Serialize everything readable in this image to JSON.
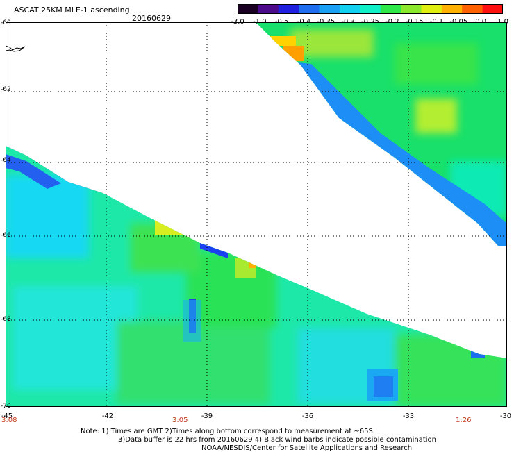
{
  "header": {
    "title": "ASCAT 25KM MLE-1 ascending",
    "date": "20160629"
  },
  "colorbar": {
    "labels": [
      "-3.0",
      "-1.0",
      "-0.5",
      "-0.4",
      "-0.35",
      "-0.3",
      "-0.25",
      "-0.2",
      "-0.15",
      "-0.1",
      "-0.05",
      "0.0",
      "1.0"
    ],
    "colors": [
      "#1a0022",
      "#4b0b8a",
      "#1f1fe0",
      "#1f6ef0",
      "#1aa0f5",
      "#12d0f0",
      "#10f0c8",
      "#2ee84a",
      "#8ce82c",
      "#e0ee10",
      "#ffb000",
      "#ff6000",
      "#ff1010"
    ]
  },
  "map": {
    "lat_labels": [
      "-60",
      "-62",
      "-64",
      "-66",
      "-68",
      "-70"
    ],
    "lon_labels": [
      "-45",
      "-42",
      "-39",
      "-36",
      "-33",
      "-30"
    ],
    "time_labels": [
      "3:08",
      "3:05",
      "1:26"
    ]
  },
  "notes": {
    "line1": "Note: 1) Times are GMT 2)Times along bottom correspond to measurement at ~65S",
    "line2": "3)Data buffer is 22 hrs from 20160629 4) Black wind barbs indicate possible contamination",
    "line3": "NOAA/NESDIS/Center for Satellite Applications and Research"
  },
  "colors": {
    "background": "#ffffff",
    "grid": "#000000",
    "time_label": "#c0381a"
  }
}
